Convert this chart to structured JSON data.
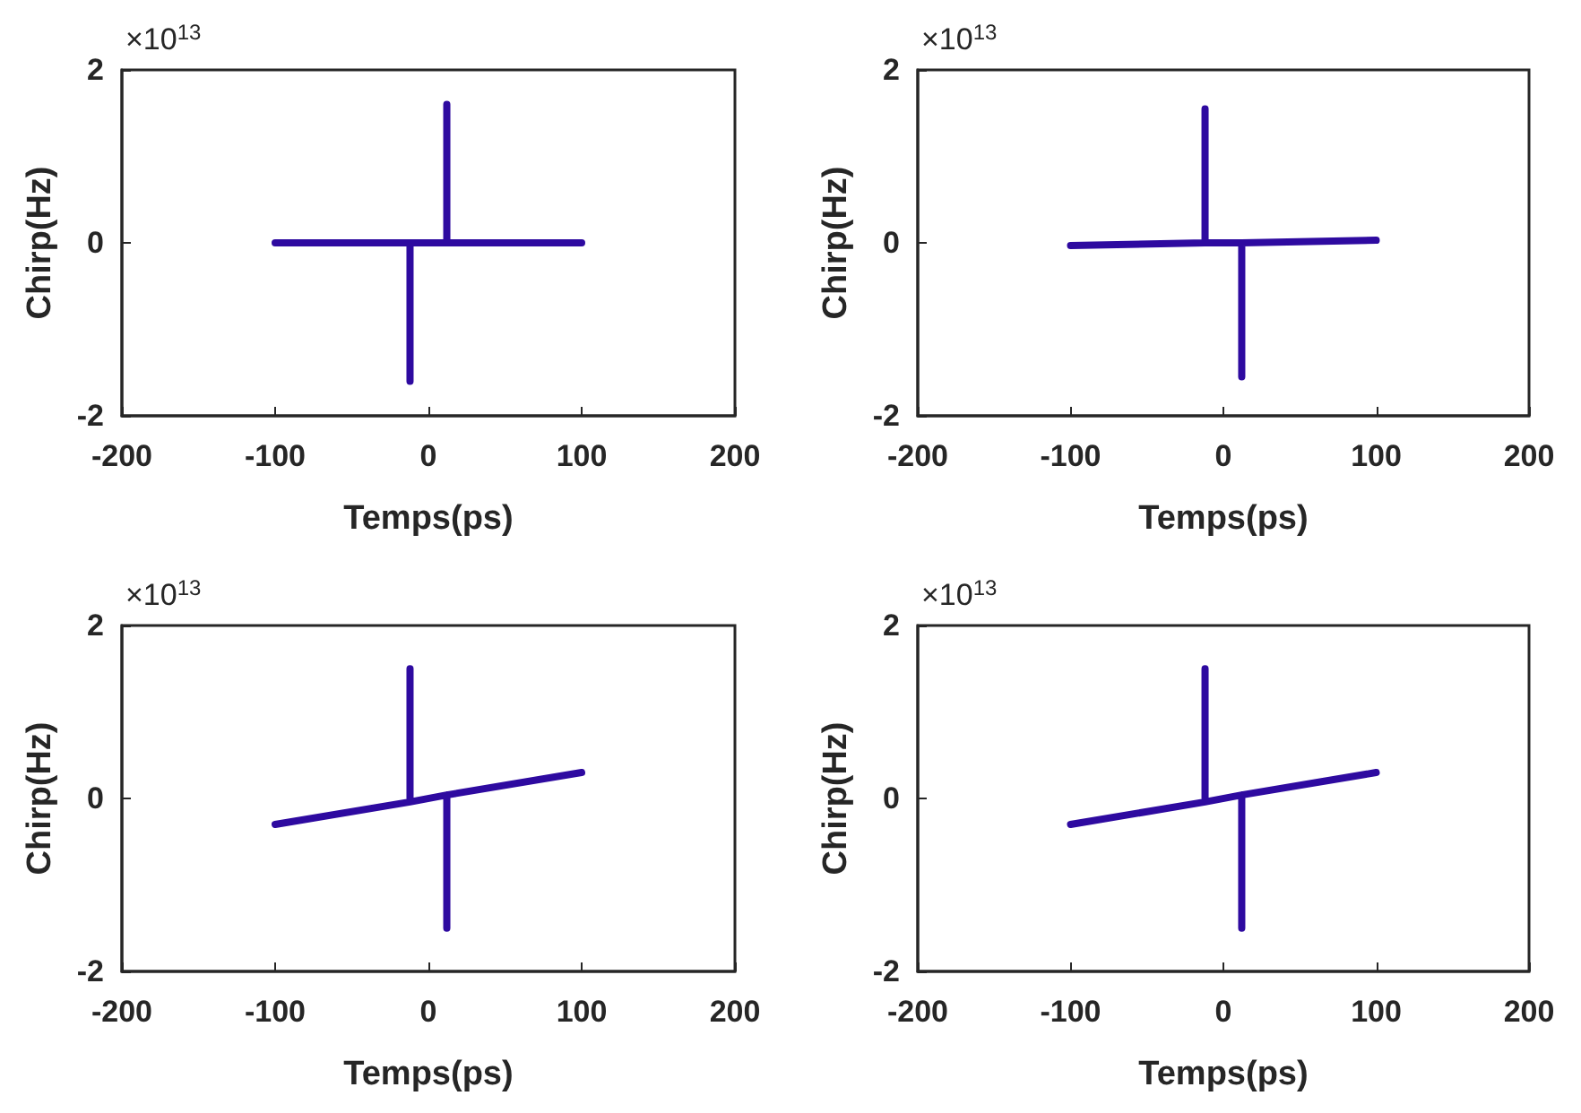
{
  "chart_data": [
    {
      "type": "line",
      "xlabel": "Temps(ps)",
      "ylabel": "Chirp(Hz)",
      "annotations": [
        "×10$^{13}$"
      ],
      "xlim": [
        -200,
        200
      ],
      "xticks": [
        -200,
        -100,
        0,
        100,
        200
      ],
      "ylim": [
        -2,
        2
      ],
      "yticks": [
        -2,
        0,
        2
      ],
      "series": [
        {
          "color": "#2e0aa0",
          "x": [
            -100,
            -12,
            -12,
            -12,
            12,
            12,
            12,
            100
          ],
          "values": [
            0,
            0,
            -1.6,
            0,
            0,
            1.6,
            0,
            0
          ]
        }
      ]
    },
    {
      "type": "line",
      "xlabel": "Temps(ps)",
      "ylabel": "Chirp(Hz)",
      "annotations": [
        "×10$^{13}$"
      ],
      "xlim": [
        -200,
        200
      ],
      "xticks": [
        -200,
        -100,
        0,
        100,
        200
      ],
      "ylim": [
        -2,
        2
      ],
      "yticks": [
        -2,
        0,
        2
      ],
      "series": [
        {
          "color": "#2e0aa0",
          "x": [
            -100,
            -12,
            -12,
            -12,
            12,
            12,
            12,
            100
          ],
          "values": [
            -0.03,
            0,
            1.55,
            0,
            0,
            -1.55,
            0,
            0.03
          ]
        }
      ]
    },
    {
      "type": "line",
      "xlabel": "Temps(ps)",
      "ylabel": "Chirp(Hz)",
      "annotations": [
        "×10$^{13}$"
      ],
      "xlim": [
        -200,
        200
      ],
      "xticks": [
        -200,
        -100,
        0,
        100,
        200
      ],
      "ylim": [
        -2,
        2
      ],
      "yticks": [
        -2,
        0,
        2
      ],
      "series": [
        {
          "color": "#2e0aa0",
          "x": [
            -100,
            -12,
            -12,
            -12,
            12,
            12,
            12,
            100
          ],
          "values": [
            -0.3,
            -0.04,
            1.5,
            -0.04,
            0.04,
            -1.5,
            0.04,
            0.3
          ]
        }
      ]
    },
    {
      "type": "line",
      "xlabel": "Temps(ps)",
      "ylabel": "Chirp(Hz)",
      "annotations": [
        "×10$^{13}$"
      ],
      "xlim": [
        -200,
        200
      ],
      "xticks": [
        -200,
        -100,
        0,
        100,
        200
      ],
      "ylim": [
        -2,
        2
      ],
      "yticks": [
        -2,
        0,
        2
      ],
      "series": [
        {
          "color": "#2e0aa0",
          "x": [
            -100,
            -12,
            -12,
            -12,
            12,
            12,
            12,
            100
          ],
          "values": [
            -0.3,
            -0.04,
            1.5,
            -0.04,
            0.04,
            -1.5,
            0.04,
            0.3
          ]
        }
      ]
    }
  ]
}
